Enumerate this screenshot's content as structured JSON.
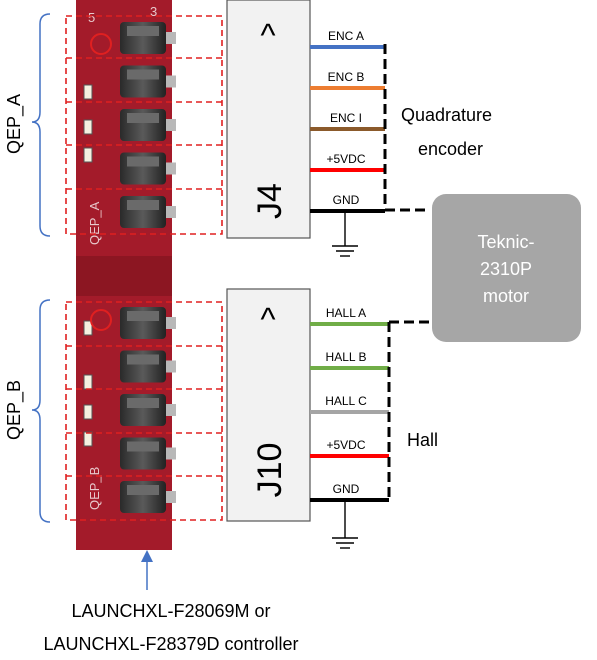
{
  "headers": {
    "j4": {
      "label": "J4",
      "arrow": "^"
    },
    "j10": {
      "label": "J10",
      "arrow": "^"
    }
  },
  "groups": {
    "qep_a": {
      "label": "QEP_A",
      "silk": "QEP_A"
    },
    "qep_b": {
      "label": "QEP_B",
      "silk": "QEP_B"
    }
  },
  "board_silk": {
    "pin_top_left": "5",
    "pin_top_right": "3"
  },
  "j4_wires": [
    {
      "label": "ENC A",
      "color": "#4472C4"
    },
    {
      "label": "ENC B",
      "color": "#ED7D31"
    },
    {
      "label": "ENC I",
      "color": "#8B5A2B"
    },
    {
      "label": "+5VDC",
      "color": "#FF0000"
    },
    {
      "label": "GND",
      "color": "#000000"
    }
  ],
  "j10_wires": [
    {
      "label": "HALL A",
      "color": "#70AD47"
    },
    {
      "label": "HALL B",
      "color": "#70AD47"
    },
    {
      "label": "HALL C",
      "color": "#A5A5A5"
    },
    {
      "label": "+5VDC",
      "color": "#FF0000"
    },
    {
      "label": "GND",
      "color": "#000000"
    }
  ],
  "quadrature_label": {
    "line1": "Quadrature",
    "line2": "encoder"
  },
  "hall_label": "Hall",
  "motor": {
    "line1": "Teknic-",
    "line2": "2310P",
    "line3": "motor",
    "fill": "#A6A6A6"
  },
  "controller_caption": {
    "line1": "LAUNCHXL-F28069M or",
    "line2": "LAUNCHXL-F28379D controller"
  },
  "colors": {
    "board": "#A31B2A",
    "highlight": "#E02020",
    "pointer": "#4472C4"
  }
}
